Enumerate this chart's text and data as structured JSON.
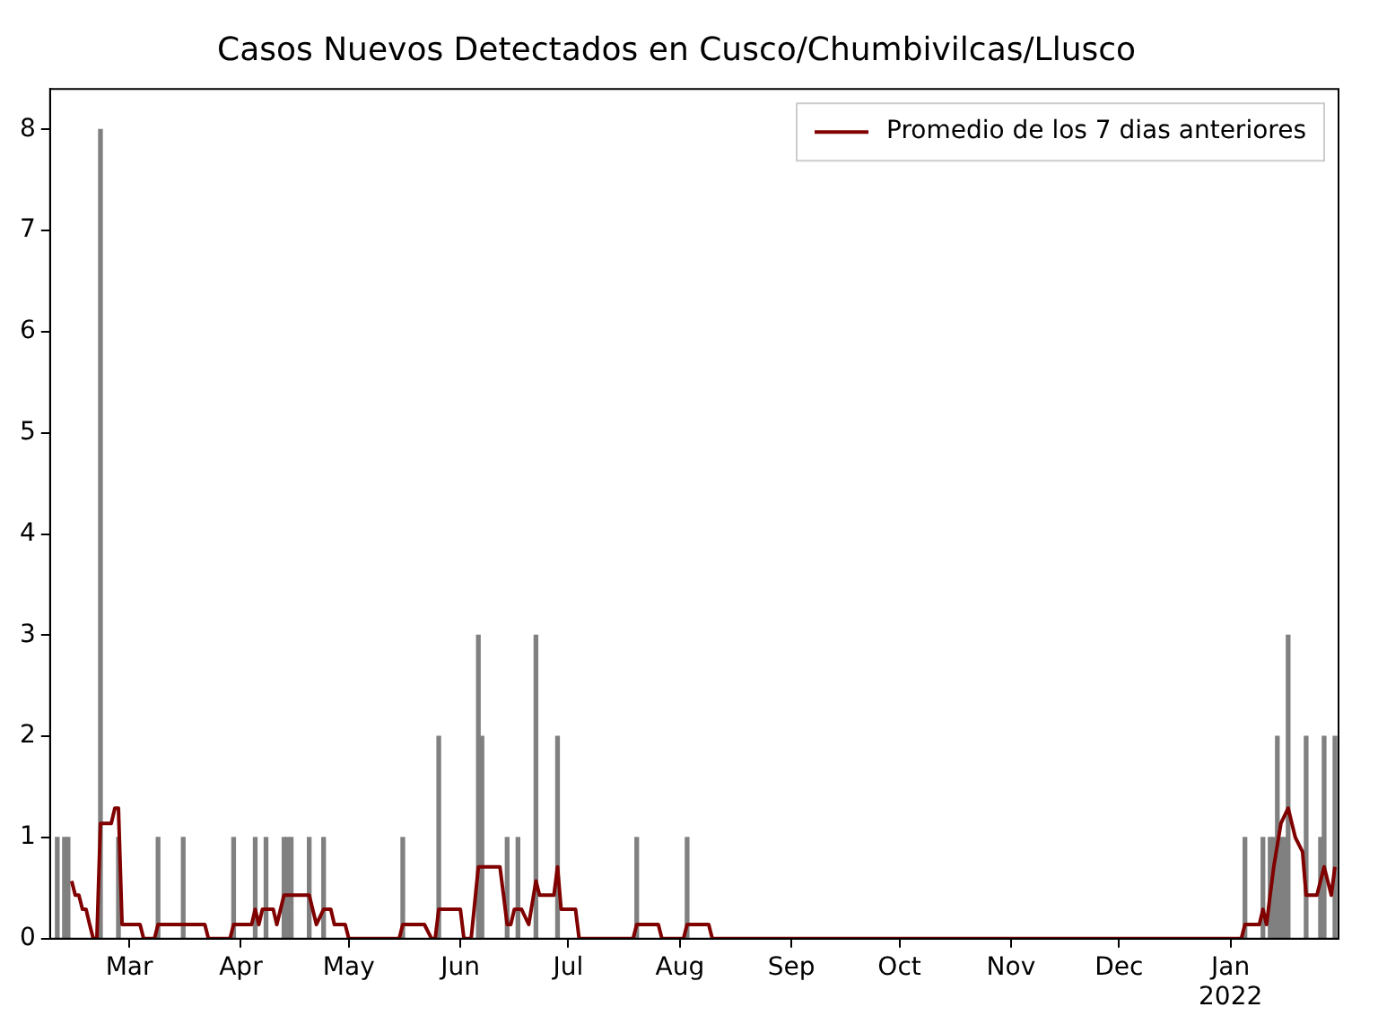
{
  "chart_data": {
    "type": "bar",
    "title": "Casos Nuevos Detectados en Cusco/Chumbivilcas/Llusco",
    "xlim": [
      "2021-02-07",
      "2022-01-31"
    ],
    "xticks": [
      {
        "value": "2021-03-01",
        "label": "Mar"
      },
      {
        "value": "2021-04-01",
        "label": "Apr"
      },
      {
        "value": "2021-05-01",
        "label": "May"
      },
      {
        "value": "2021-06-01",
        "label": "Jun"
      },
      {
        "value": "2021-07-01",
        "label": "Jul"
      },
      {
        "value": "2021-08-01",
        "label": "Aug"
      },
      {
        "value": "2021-09-01",
        "label": "Sep"
      },
      {
        "value": "2021-10-01",
        "label": "Oct"
      },
      {
        "value": "2021-11-01",
        "label": "Nov"
      },
      {
        "value": "2021-12-01",
        "label": "Dec"
      },
      {
        "value": "2022-01-01",
        "label": "Jan\n2022"
      }
    ],
    "ylim": [
      0,
      8.4
    ],
    "yticks": [
      0,
      1,
      2,
      3,
      4,
      5,
      6,
      7,
      8
    ],
    "grid": false,
    "legend": "top right",
    "series": [
      {
        "color": "#808080",
        "x": [
          "2021-02-09",
          "2021-02-11",
          "2021-02-12",
          "2021-02-21",
          "2021-02-26",
          "2021-03-09",
          "2021-03-16",
          "2021-03-30",
          "2021-04-05",
          "2021-04-08",
          "2021-04-13",
          "2021-04-14",
          "2021-04-15",
          "2021-04-20",
          "2021-04-24",
          "2021-05-16",
          "2021-05-26",
          "2021-06-06",
          "2021-06-07",
          "2021-06-14",
          "2021-06-17",
          "2021-06-22",
          "2021-06-28",
          "2021-07-20",
          "2021-08-03",
          "2022-01-05",
          "2022-01-10",
          "2022-01-12",
          "2022-01-13",
          "2022-01-14",
          "2022-01-15",
          "2022-01-16",
          "2022-01-17",
          "2022-01-22",
          "2022-01-26",
          "2022-01-27",
          "2022-01-30"
        ],
        "values": [
          1,
          1,
          1,
          8,
          1,
          1,
          1,
          1,
          1,
          1,
          1,
          1,
          1,
          1,
          1,
          1,
          2,
          3,
          2,
          1,
          1,
          3,
          2,
          1,
          1,
          1,
          1,
          1,
          1,
          2,
          1,
          1,
          3,
          2,
          1,
          2,
          2
        ]
      },
      {
        "type": "line",
        "name": "Promedio de los 7 dias anteriores",
        "color": "#800000",
        "x": [
          "2021-02-13",
          "2021-02-14",
          "2021-02-15",
          "2021-02-16",
          "2021-02-17",
          "2021-02-18",
          "2021-02-19",
          "2021-02-20",
          "2021-02-21",
          "2021-02-24",
          "2021-02-25",
          "2021-02-26",
          "2021-02-27",
          "2021-03-04",
          "2021-03-05",
          "2021-03-08",
          "2021-03-09",
          "2021-03-22",
          "2021-03-23",
          "2021-03-29",
          "2021-03-30",
          "2021-04-04",
          "2021-04-05",
          "2021-04-06",
          "2021-04-07",
          "2021-04-10",
          "2021-04-11",
          "2021-04-13",
          "2021-04-20",
          "2021-04-22",
          "2021-04-24",
          "2021-04-26",
          "2021-04-27",
          "2021-04-30",
          "2021-05-01",
          "2021-05-15",
          "2021-05-16",
          "2021-05-22",
          "2021-05-24",
          "2021-05-25",
          "2021-05-26",
          "2021-06-01",
          "2021-06-02",
          "2021-06-04",
          "2021-06-06",
          "2021-06-12",
          "2021-06-13",
          "2021-06-14",
          "2021-06-15",
          "2021-06-16",
          "2021-06-18",
          "2021-06-20",
          "2021-06-22",
          "2021-06-23",
          "2021-06-27",
          "2021-06-28",
          "2021-06-29",
          "2021-07-03",
          "2021-07-04",
          "2021-07-19",
          "2021-07-20",
          "2021-07-26",
          "2021-07-27",
          "2021-08-02",
          "2021-08-03",
          "2021-08-09",
          "2021-08-10",
          "2022-01-04",
          "2022-01-05",
          "2022-01-09",
          "2022-01-10",
          "2022-01-11",
          "2022-01-12",
          "2022-01-13",
          "2022-01-15",
          "2022-01-17",
          "2022-01-19",
          "2022-01-21",
          "2022-01-22",
          "2022-01-25",
          "2022-01-27",
          "2022-01-29",
          "2022-01-30"
        ],
        "values": [
          0.57,
          0.43,
          0.43,
          0.29,
          0.29,
          0.14,
          0,
          0,
          1.14,
          1.14,
          1.29,
          1.29,
          0.14,
          0.14,
          0,
          0,
          0.14,
          0.14,
          0,
          0,
          0.14,
          0.14,
          0.29,
          0.14,
          0.29,
          0.29,
          0.14,
          0.43,
          0.43,
          0.14,
          0.29,
          0.29,
          0.14,
          0.14,
          0,
          0,
          0.14,
          0.14,
          0,
          0,
          0.29,
          0.29,
          0,
          0,
          0.71,
          0.71,
          0.43,
          0.14,
          0.14,
          0.29,
          0.29,
          0.14,
          0.57,
          0.43,
          0.43,
          0.71,
          0.29,
          0.29,
          0,
          0,
          0.14,
          0.14,
          0,
          0,
          0.14,
          0.14,
          0,
          0,
          0.14,
          0.14,
          0.29,
          0.14,
          0.43,
          0.71,
          1.14,
          1.29,
          1,
          0.86,
          0.43,
          0.43,
          0.71,
          0.43,
          0.71
        ]
      }
    ]
  }
}
